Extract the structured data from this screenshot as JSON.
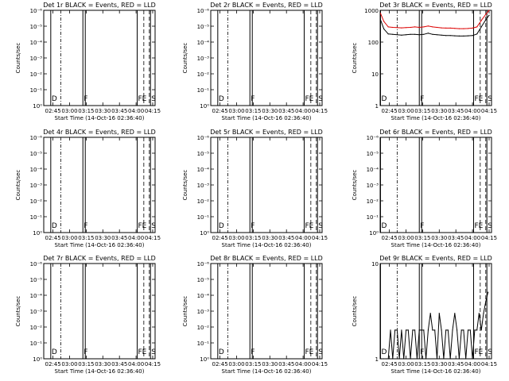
{
  "figure": {
    "background": "#ffffff",
    "event_color": "#000000",
    "lld_color": "#dd0000"
  },
  "chart_data": [
    {
      "type": "line",
      "title": "Det 1r BLACK = Events, RED = LLD",
      "xlabel": "Start Time (14-Oct-16 02:36:40)",
      "ylabel": "Counts/sec",
      "x_tick_labels": [
        "02:45",
        "03:00",
        "03:15",
        "03:30",
        "03:45",
        "04:00",
        "04:15"
      ],
      "y_tick_labels": [
        "10⁰",
        "10⁻¹",
        "10⁻²",
        "10⁻³",
        "10⁻⁴",
        "10⁻⁵",
        "10⁻⁶"
      ],
      "markers": [
        {
          "label": "D",
          "time": "02:43",
          "style": "solid"
        },
        {
          "label": "F",
          "time": "03:12",
          "style": "solid"
        },
        {
          "label": "FE",
          "time": "04:01",
          "style": "solid"
        },
        {
          "label": "S",
          "time": "04:13",
          "style": "solid"
        }
      ],
      "series": []
    },
    {
      "type": "line",
      "title": "Det 2r BLACK = Events, RED = LLD",
      "xlabel": "Start Time (14-Oct-16 02:36:40)",
      "ylabel": "Counts/sec",
      "x_tick_labels": [
        "02:45",
        "03:00",
        "03:15",
        "03:30",
        "03:45",
        "04:00",
        "04:15"
      ],
      "y_tick_labels": [
        "10⁰",
        "10⁻¹",
        "10⁻²",
        "10⁻³",
        "10⁻⁴",
        "10⁻⁵",
        "10⁻⁶"
      ],
      "markers": [
        {
          "label": "D",
          "time": "02:43",
          "style": "solid"
        },
        {
          "label": "F",
          "time": "03:12",
          "style": "solid"
        },
        {
          "label": "FE",
          "time": "04:01",
          "style": "solid"
        },
        {
          "label": "S",
          "time": "04:13",
          "style": "solid"
        }
      ],
      "series": []
    },
    {
      "type": "line",
      "title": "Det 3r BLACK = Events, RED = LLD",
      "xlabel": "Start Time (14-Oct-16 02:36:40)",
      "ylabel": "Counts/sec",
      "x_tick_labels": [
        "02:45",
        "03:00",
        "03:15",
        "03:30",
        "03:45",
        "04:00",
        "04:15"
      ],
      "y_tick_labels": [
        "1",
        "10",
        "100",
        "1000"
      ],
      "markers": [
        {
          "label": "D",
          "time": "02:37",
          "style": "solid"
        },
        {
          "label": "F",
          "time": "03:12",
          "style": "solid"
        },
        {
          "label": "FE",
          "time": "04:01",
          "style": "solid"
        },
        {
          "label": "S",
          "time": "04:13",
          "style": "solid"
        }
      ],
      "series": [
        {
          "color": "#000000",
          "x": [
            "02:37",
            "02:40",
            "02:44",
            "02:48",
            "02:52",
            "02:56",
            "03:00",
            "03:04",
            "03:08",
            "03:12",
            "03:16",
            "03:20",
            "03:24",
            "03:28",
            "03:32",
            "03:36",
            "03:40",
            "03:44",
            "03:48",
            "03:52",
            "03:56",
            "04:00",
            "04:04",
            "04:08",
            "04:12",
            "04:15"
          ],
          "y": [
            500,
            260,
            180,
            175,
            170,
            165,
            170,
            175,
            175,
            170,
            175,
            190,
            175,
            170,
            165,
            160,
            160,
            158,
            155,
            155,
            158,
            160,
            180,
            300,
            500,
            700
          ]
        },
        {
          "color": "#dd0000",
          "x": [
            "02:37",
            "02:40",
            "02:44",
            "02:48",
            "02:52",
            "02:56",
            "03:00",
            "03:04",
            "03:08",
            "03:12",
            "03:16",
            "03:20",
            "03:24",
            "03:28",
            "03:32",
            "03:36",
            "03:40",
            "03:44",
            "03:48",
            "03:52",
            "03:56",
            "04:00",
            "04:04",
            "04:08",
            "04:12",
            "04:15"
          ],
          "y": [
            800,
            450,
            300,
            290,
            285,
            280,
            285,
            290,
            300,
            290,
            300,
            320,
            300,
            290,
            280,
            275,
            275,
            270,
            265,
            265,
            268,
            275,
            300,
            480,
            750,
            1000
          ]
        }
      ]
    },
    {
      "type": "line",
      "title": "Det 4r BLACK = Events, RED = LLD",
      "xlabel": "Start Time (14-Oct-16 02:36:40)",
      "ylabel": "Counts/sec",
      "x_tick_labels": [
        "02:45",
        "03:00",
        "03:15",
        "03:30",
        "03:45",
        "04:00",
        "04:15"
      ],
      "y_tick_labels": [
        "10⁰",
        "10⁻¹",
        "10⁻²",
        "10⁻³",
        "10⁻⁴",
        "10⁻⁵",
        "10⁻⁶"
      ],
      "markers": [
        {
          "label": "D",
          "time": "02:43",
          "style": "solid"
        },
        {
          "label": "F",
          "time": "03:12",
          "style": "solid"
        },
        {
          "label": "FE",
          "time": "04:01",
          "style": "solid"
        },
        {
          "label": "S",
          "time": "04:13",
          "style": "solid"
        }
      ],
      "series": []
    },
    {
      "type": "line",
      "title": "Det 5r BLACK = Events, RED = LLD",
      "xlabel": "Start Time (14-Oct-16 02:36:40)",
      "ylabel": "Counts/sec",
      "x_tick_labels": [
        "02:45",
        "03:00",
        "03:15",
        "03:30",
        "03:45",
        "04:00",
        "04:15"
      ],
      "y_tick_labels": [
        "10⁰",
        "10⁻¹",
        "10⁻²",
        "10⁻³",
        "10⁻⁴",
        "10⁻⁵",
        "10⁻⁶"
      ],
      "markers": [
        {
          "label": "D",
          "time": "02:43",
          "style": "solid"
        },
        {
          "label": "F",
          "time": "03:12",
          "style": "solid"
        },
        {
          "label": "FE",
          "time": "04:01",
          "style": "solid"
        },
        {
          "label": "S",
          "time": "04:13",
          "style": "solid"
        }
      ],
      "series": []
    },
    {
      "type": "line",
      "title": "Det 6r BLACK = Events, RED = LLD",
      "xlabel": "Start Time (14-Oct-16 02:36:40)",
      "ylabel": "Counts/sec",
      "x_tick_labels": [
        "02:45",
        "03:00",
        "03:15",
        "03:30",
        "03:45",
        "04:00",
        "04:15"
      ],
      "y_tick_labels": [
        "10⁰",
        "10⁻¹",
        "10⁻²",
        "10⁻³",
        "10⁻⁴",
        "10⁻⁵",
        "10⁻⁶"
      ],
      "markers": [
        {
          "label": "D",
          "time": "02:37",
          "style": "solid"
        },
        {
          "label": "F",
          "time": "03:12",
          "style": "solid"
        },
        {
          "label": "FE",
          "time": "04:01",
          "style": "solid"
        },
        {
          "label": "S",
          "time": "04:13",
          "style": "solid"
        }
      ],
      "series": []
    },
    {
      "type": "line",
      "title": "Det 7r BLACK = Events, RED = LLD",
      "xlabel": "Start Time (14-Oct-16 02:36:40)",
      "ylabel": "Counts/sec",
      "x_tick_labels": [
        "02:45",
        "03:00",
        "03:15",
        "03:30",
        "03:45",
        "04:00",
        "04:15"
      ],
      "y_tick_labels": [
        "10⁰",
        "10⁻¹",
        "10⁻²",
        "10⁻³",
        "10⁻⁴",
        "10⁻⁵",
        "10⁻⁶"
      ],
      "markers": [
        {
          "label": "D",
          "time": "02:43",
          "style": "solid"
        },
        {
          "label": "F",
          "time": "03:12",
          "style": "solid"
        },
        {
          "label": "FE",
          "time": "04:01",
          "style": "solid"
        },
        {
          "label": "S",
          "time": "04:13",
          "style": "solid"
        }
      ],
      "series": []
    },
    {
      "type": "line",
      "title": "Det 8r BLACK = Events, RED = LLD",
      "xlabel": "Start Time (14-Oct-16 02:36:40)",
      "ylabel": "Counts/sec",
      "x_tick_labels": [
        "02:45",
        "03:00",
        "03:15",
        "03:30",
        "03:45",
        "04:00",
        "04:15"
      ],
      "y_tick_labels": [
        "10⁰",
        "10⁻¹",
        "10⁻²",
        "10⁻³",
        "10⁻⁴",
        "10⁻⁵",
        "10⁻⁶"
      ],
      "markers": [
        {
          "label": "D",
          "time": "02:43",
          "style": "solid"
        },
        {
          "label": "F",
          "time": "03:12",
          "style": "solid"
        },
        {
          "label": "FE",
          "time": "04:01",
          "style": "solid"
        },
        {
          "label": "S",
          "time": "04:13",
          "style": "solid"
        }
      ],
      "series": []
    },
    {
      "type": "line",
      "title": "Det 9r BLACK = Events, RED = LLD",
      "xlabel": "Start Time (14-Oct-16 02:36:40)",
      "ylabel": "Counts/sec",
      "x_tick_labels": [
        "02:45",
        "03:00",
        "03:15",
        "03:30",
        "03:45",
        "04:00",
        "04:15"
      ],
      "y_tick_labels": [
        "1",
        "10"
      ],
      "markers": [
        {
          "label": "D",
          "time": "02:37",
          "style": "solid"
        },
        {
          "label": "F",
          "time": "03:12",
          "style": "solid"
        },
        {
          "label": "FE",
          "time": "04:01",
          "style": "solid"
        },
        {
          "label": "S",
          "time": "04:13",
          "style": "solid"
        }
      ],
      "series": [
        {
          "color": "#000000",
          "x": [
            "02:38",
            "02:40",
            "02:42",
            "02:44",
            "02:46",
            "02:48",
            "02:50",
            "02:52",
            "02:54",
            "02:56",
            "02:58",
            "03:00",
            "03:02",
            "03:04",
            "03:06",
            "03:08",
            "03:10",
            "03:12",
            "03:14",
            "03:16",
            "03:18",
            "03:20",
            "03:22",
            "03:24",
            "03:26",
            "03:28",
            "03:30",
            "03:32",
            "03:34",
            "03:36",
            "03:38",
            "03:40",
            "03:42",
            "03:44",
            "03:46",
            "03:48",
            "03:50",
            "03:52",
            "03:54",
            "03:56",
            "03:58",
            "04:00",
            "04:02",
            "04:04",
            "04:06",
            "04:08",
            "04:10",
            "04:12",
            "04:14"
          ],
          "y": [
            1,
            1,
            1,
            1,
            2,
            1,
            2,
            2,
            1,
            2,
            1,
            2,
            2,
            1,
            2,
            2,
            1,
            2,
            2,
            2,
            1,
            2,
            3,
            2,
            2,
            1,
            3,
            2,
            1,
            2,
            2,
            1,
            2,
            3,
            2,
            1,
            2,
            2,
            1,
            2,
            2,
            1,
            2,
            2,
            3,
            2,
            3,
            4,
            5
          ]
        }
      ]
    }
  ]
}
